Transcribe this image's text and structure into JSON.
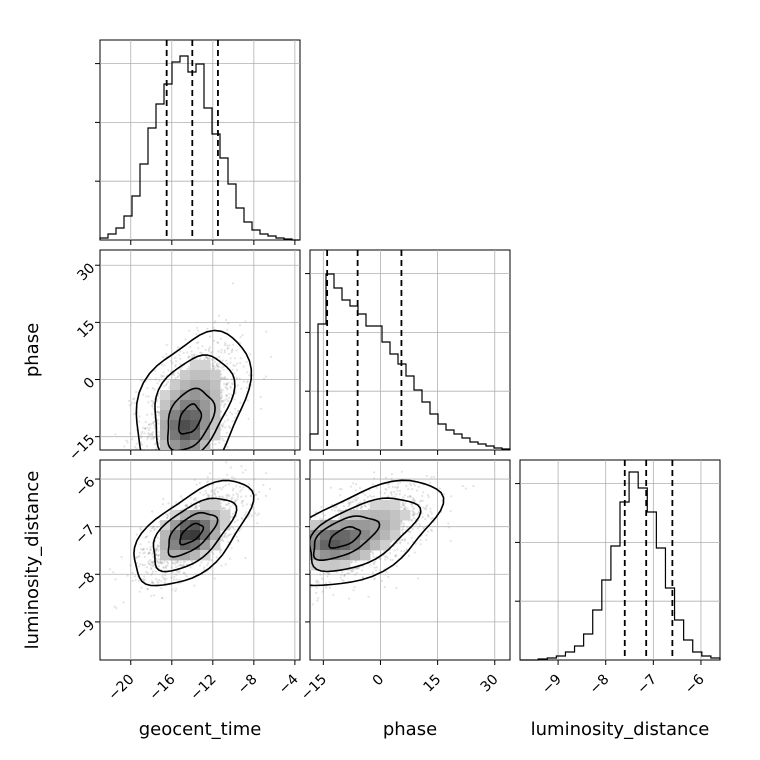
{
  "chart_data": {
    "type": "corner",
    "parameters": [
      "geocent_time",
      "phase",
      "luminosity_distance"
    ],
    "axis_labels": {
      "x": [
        "geocent_time",
        "phase",
        "luminosity_distance"
      ],
      "y": [
        "phase",
        "luminosity_distance"
      ]
    },
    "ranges": {
      "geocent_time": [
        -23,
        -3.5
      ],
      "phase": [
        -18.5,
        34
      ],
      "luminosity_distance": [
        -9.8,
        -5.6
      ]
    },
    "ticks": {
      "geocent_time": [
        -20,
        -16,
        -12,
        -8,
        -4
      ],
      "phase": [
        -15,
        0,
        15,
        30
      ],
      "luminosity_distance": [
        -9,
        -8,
        -7,
        -6
      ]
    },
    "tick_labels": {
      "geocent_time": [
        "−20",
        "−16",
        "−12",
        "−8",
        "−4"
      ],
      "phase": [
        "−15",
        "0",
        "15",
        "30"
      ],
      "luminosity_distance": [
        "−9",
        "−8",
        "−7",
        "−6"
      ]
    },
    "quantiles": {
      "geocent_time": [
        -16.5,
        -14.0,
        -11.5
      ],
      "phase": [
        -14.0,
        -6.0,
        5.5
      ],
      "luminosity_distance": [
        -7.6,
        -7.15,
        -6.6
      ]
    },
    "histograms": {
      "geocent_time": {
        "edges_min": -23,
        "edges_max": -3.5,
        "counts": [
          0.01,
          0.03,
          0.06,
          0.12,
          0.22,
          0.38,
          0.56,
          0.68,
          0.78,
          0.89,
          0.92,
          0.84,
          0.88,
          0.66,
          0.53,
          0.41,
          0.28,
          0.16,
          0.09,
          0.05,
          0.03,
          0.02,
          0.01,
          0.005,
          0
        ]
      },
      "phase": {
        "edges_min": -18.5,
        "edges_max": 34,
        "counts": [
          0.08,
          0.63,
          0.88,
          0.81,
          0.75,
          0.72,
          0.68,
          0.62,
          0.62,
          0.54,
          0.48,
          0.43,
          0.37,
          0.3,
          0.24,
          0.18,
          0.13,
          0.1,
          0.08,
          0.06,
          0.04,
          0.03,
          0.02,
          0.01,
          0.005
        ]
      },
      "luminosity_distance": {
        "edges_min": -9.8,
        "edges_max": -5.6,
        "counts": [
          0,
          0,
          0.005,
          0.01,
          0.02,
          0.04,
          0.07,
          0.13,
          0.25,
          0.4,
          0.57,
          0.79,
          0.94,
          0.86,
          0.74,
          0.56,
          0.36,
          0.2,
          0.1,
          0.04,
          0.02,
          0.01
        ]
      }
    },
    "joint": [
      {
        "x": "geocent_time",
        "y": "phase",
        "mean": [
          -14.0,
          -7.0
        ],
        "sd": [
          2.4,
          8.5
        ],
        "rho": 0.35,
        "peak": [
          -14.5,
          -14.0
        ]
      },
      {
        "x": "geocent_time",
        "y": "luminosity_distance",
        "mean": [
          -14.0,
          -7.15
        ],
        "sd": [
          2.5,
          0.48
        ],
        "rho": 0.6,
        "peak": [
          -14.2,
          -7.15
        ]
      },
      {
        "x": "phase",
        "y": "luminosity_distance",
        "mean": [
          -5.0,
          -7.15
        ],
        "sd": [
          9.0,
          0.48
        ],
        "rho": 0.55,
        "peak": [
          -14.0,
          -7.3
        ]
      }
    ]
  }
}
